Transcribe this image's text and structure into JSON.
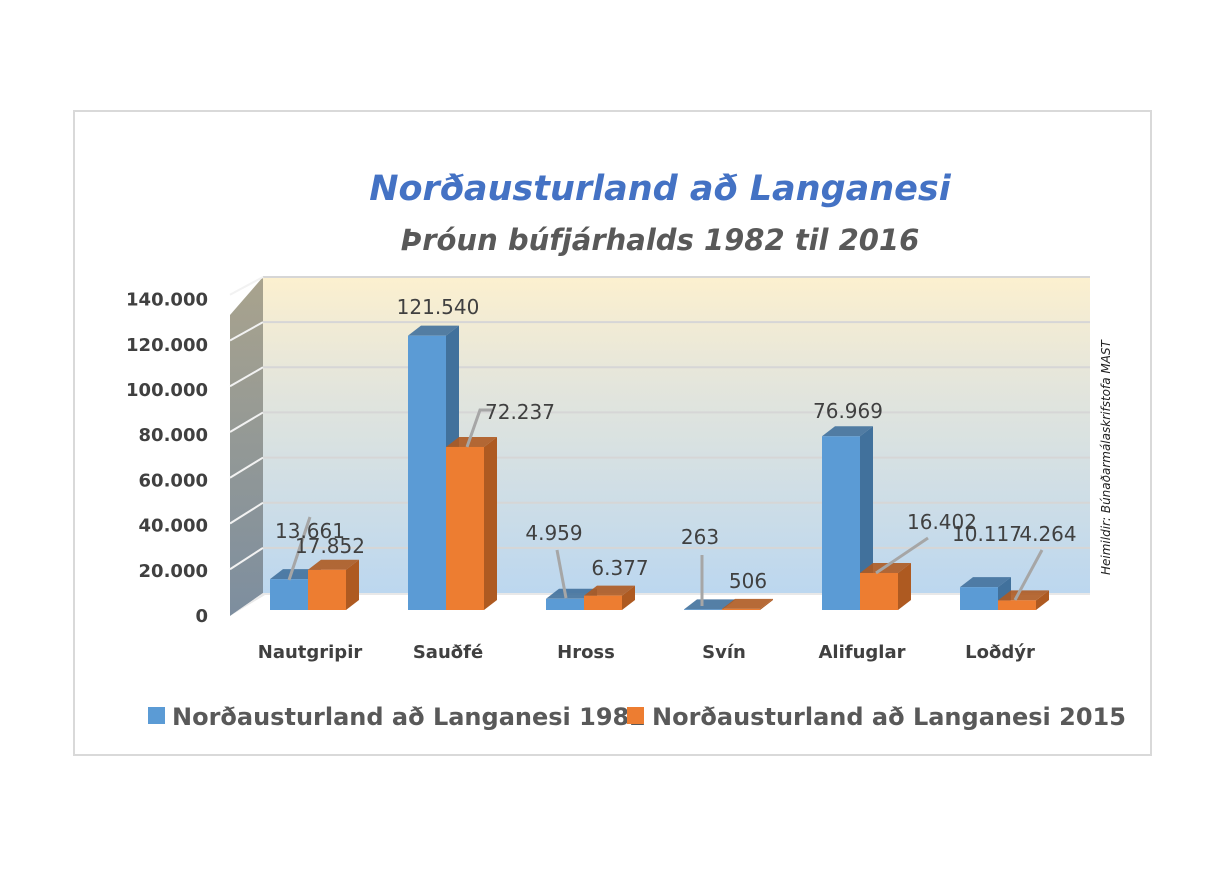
{
  "chart_data": {
    "type": "bar",
    "title": "Norðausturland að Langanesi",
    "subtitle": "Þróun búfjárhalds 1982 til 2016",
    "source": "Heimildir: Búnaðarmálaskrifstofa MAST",
    "categories": [
      "Nautgripir",
      "Sauðfé",
      "Hross",
      "Svín",
      "Alifuglar",
      "Loðdýr"
    ],
    "series": [
      {
        "name": "Norðausturland að Langanesi 1982",
        "color": "#5B9BD5",
        "side_color": "#41719C",
        "values": [
          13661,
          121540,
          4959,
          263,
          76969,
          10117
        ],
        "labels": [
          "13.661",
          "121.540",
          "4.959",
          "263",
          "76.969",
          "10.117"
        ]
      },
      {
        "name": "Norðausturland að Langanesi 2015",
        "color": "#ED7D31",
        "side_color": "#AE5A21",
        "values": [
          17852,
          72237,
          6377,
          506,
          16402,
          4264
        ],
        "labels": [
          "17.852",
          "72.237",
          "6.377",
          "506",
          "16.402",
          "4.264"
        ]
      }
    ],
    "yticks": [
      "0",
      "20.000",
      "40.000",
      "60.000",
      "80.000",
      "100.000",
      "120.000",
      "140.000"
    ],
    "ylim": [
      0,
      140000
    ],
    "grid": true,
    "legend": "bottom",
    "xlabel": "",
    "ylabel": ""
  }
}
